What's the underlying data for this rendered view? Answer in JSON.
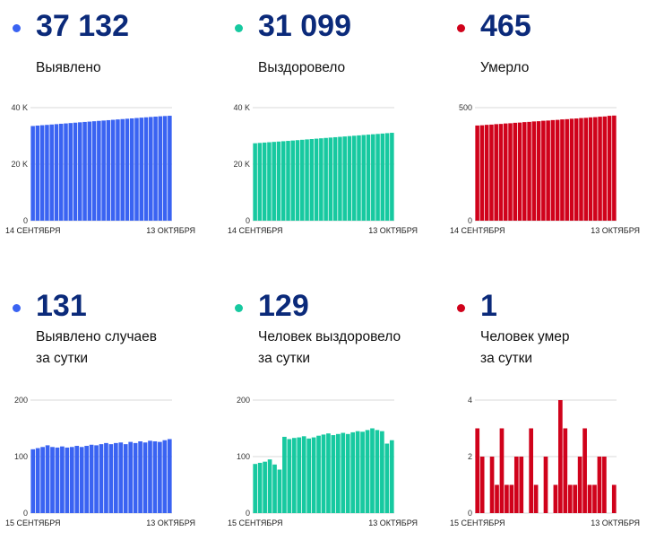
{
  "panels": [
    {
      "value": "37 132",
      "label1": "Выявлено",
      "label2": ""
    },
    {
      "value": "31 099",
      "label1": "Выздоровело",
      "label2": ""
    },
    {
      "value": "465",
      "label1": "Умерло",
      "label2": ""
    },
    {
      "value": "131",
      "label1": "Выявлено случаев",
      "label2": "за сутки"
    },
    {
      "value": "129",
      "label1": "Человек выздоровело",
      "label2": "за сутки"
    },
    {
      "value": "1",
      "label1": "Человек умер",
      "label2": "за сутки"
    }
  ],
  "colors": {
    "blue": "#3a63f2",
    "teal": "#17c9a0",
    "red": "#d0021b"
  },
  "chart_data": [
    {
      "type": "bar",
      "color": "blue",
      "ylim": [
        0,
        40000
      ],
      "yticks": [
        {
          "value": 0,
          "label": "0"
        },
        {
          "value": 20000,
          "label": "20 K"
        },
        {
          "value": 40000,
          "label": "40 K"
        }
      ],
      "xlabels": [
        "14 СЕНТЯБРЯ",
        "13 ОКТЯБРЯ"
      ],
      "values": [
        33500,
        33650,
        33780,
        33900,
        34030,
        34160,
        34300,
        34420,
        34550,
        34680,
        34810,
        34940,
        35060,
        35190,
        35320,
        35440,
        35570,
        35700,
        35830,
        35950,
        36080,
        36200,
        36330,
        36460,
        36580,
        36700,
        36820,
        36940,
        37040,
        37132
      ]
    },
    {
      "type": "bar",
      "color": "teal",
      "ylim": [
        0,
        40000
      ],
      "yticks": [
        {
          "value": 0,
          "label": "0"
        },
        {
          "value": 20000,
          "label": "20 K"
        },
        {
          "value": 40000,
          "label": "40 K"
        }
      ],
      "xlabels": [
        "14 СЕНТЯБРЯ",
        "13 ОКТЯБРЯ"
      ],
      "values": [
        27400,
        27520,
        27640,
        27760,
        27880,
        28000,
        28120,
        28240,
        28370,
        28500,
        28630,
        28760,
        28890,
        29020,
        29150,
        29280,
        29410,
        29540,
        29670,
        29800,
        29930,
        30060,
        30190,
        30320,
        30450,
        30580,
        30700,
        30830,
        30970,
        31099
      ]
    },
    {
      "type": "bar",
      "color": "red",
      "ylim": [
        0,
        500
      ],
      "yticks": [
        {
          "value": 0,
          "label": "0"
        },
        {
          "value": 500,
          "label": "500"
        }
      ],
      "xlabels": [
        "14 СЕНТЯБРЯ",
        "13 ОКТЯБРЯ"
      ],
      "values": [
        421,
        422,
        424,
        425,
        427,
        428,
        430,
        431,
        433,
        434,
        436,
        437,
        439,
        440,
        442,
        443,
        445,
        446,
        448,
        449,
        451,
        452,
        454,
        455,
        457,
        458,
        460,
        461,
        464,
        465
      ]
    },
    {
      "type": "bar",
      "color": "blue",
      "ylim": [
        0,
        200
      ],
      "yticks": [
        {
          "value": 0,
          "label": "0"
        },
        {
          "value": 100,
          "label": "100"
        },
        {
          "value": 200,
          "label": "200"
        }
      ],
      "xlabels": [
        "15 СЕНТЯБРЯ",
        "13 ОКТЯБРЯ"
      ],
      "values": [
        113,
        115,
        117,
        120,
        117,
        116,
        118,
        116,
        117,
        119,
        117,
        119,
        121,
        120,
        122,
        124,
        122,
        124,
        125,
        122,
        126,
        124,
        127,
        125,
        128,
        127,
        126,
        129,
        131
      ]
    },
    {
      "type": "bar",
      "color": "teal",
      "ylim": [
        0,
        200
      ],
      "yticks": [
        {
          "value": 0,
          "label": "0"
        },
        {
          "value": 100,
          "label": "100"
        },
        {
          "value": 200,
          "label": "200"
        }
      ],
      "xlabels": [
        "15 СЕНТЯБРЯ",
        "13 ОКТЯБРЯ"
      ],
      "values": [
        87,
        89,
        91,
        95,
        86,
        77,
        135,
        131,
        133,
        134,
        136,
        132,
        134,
        137,
        139,
        141,
        138,
        140,
        142,
        140,
        143,
        145,
        144,
        147,
        150,
        147,
        145,
        123,
        129
      ]
    },
    {
      "type": "bar",
      "color": "red",
      "ylim": [
        0,
        4
      ],
      "yticks": [
        {
          "value": 0,
          "label": "0"
        },
        {
          "value": 2,
          "label": "2"
        },
        {
          "value": 4,
          "label": "4"
        }
      ],
      "xlabels": [
        "15 СЕНТЯБРЯ",
        "13 ОКТЯБРЯ"
      ],
      "values": [
        3,
        2,
        0,
        2,
        1,
        3,
        1,
        1,
        2,
        2,
        0,
        3,
        1,
        0,
        2,
        0,
        1,
        4,
        3,
        1,
        1,
        2,
        3,
        1,
        1,
        2,
        2,
        0,
        1
      ]
    }
  ]
}
